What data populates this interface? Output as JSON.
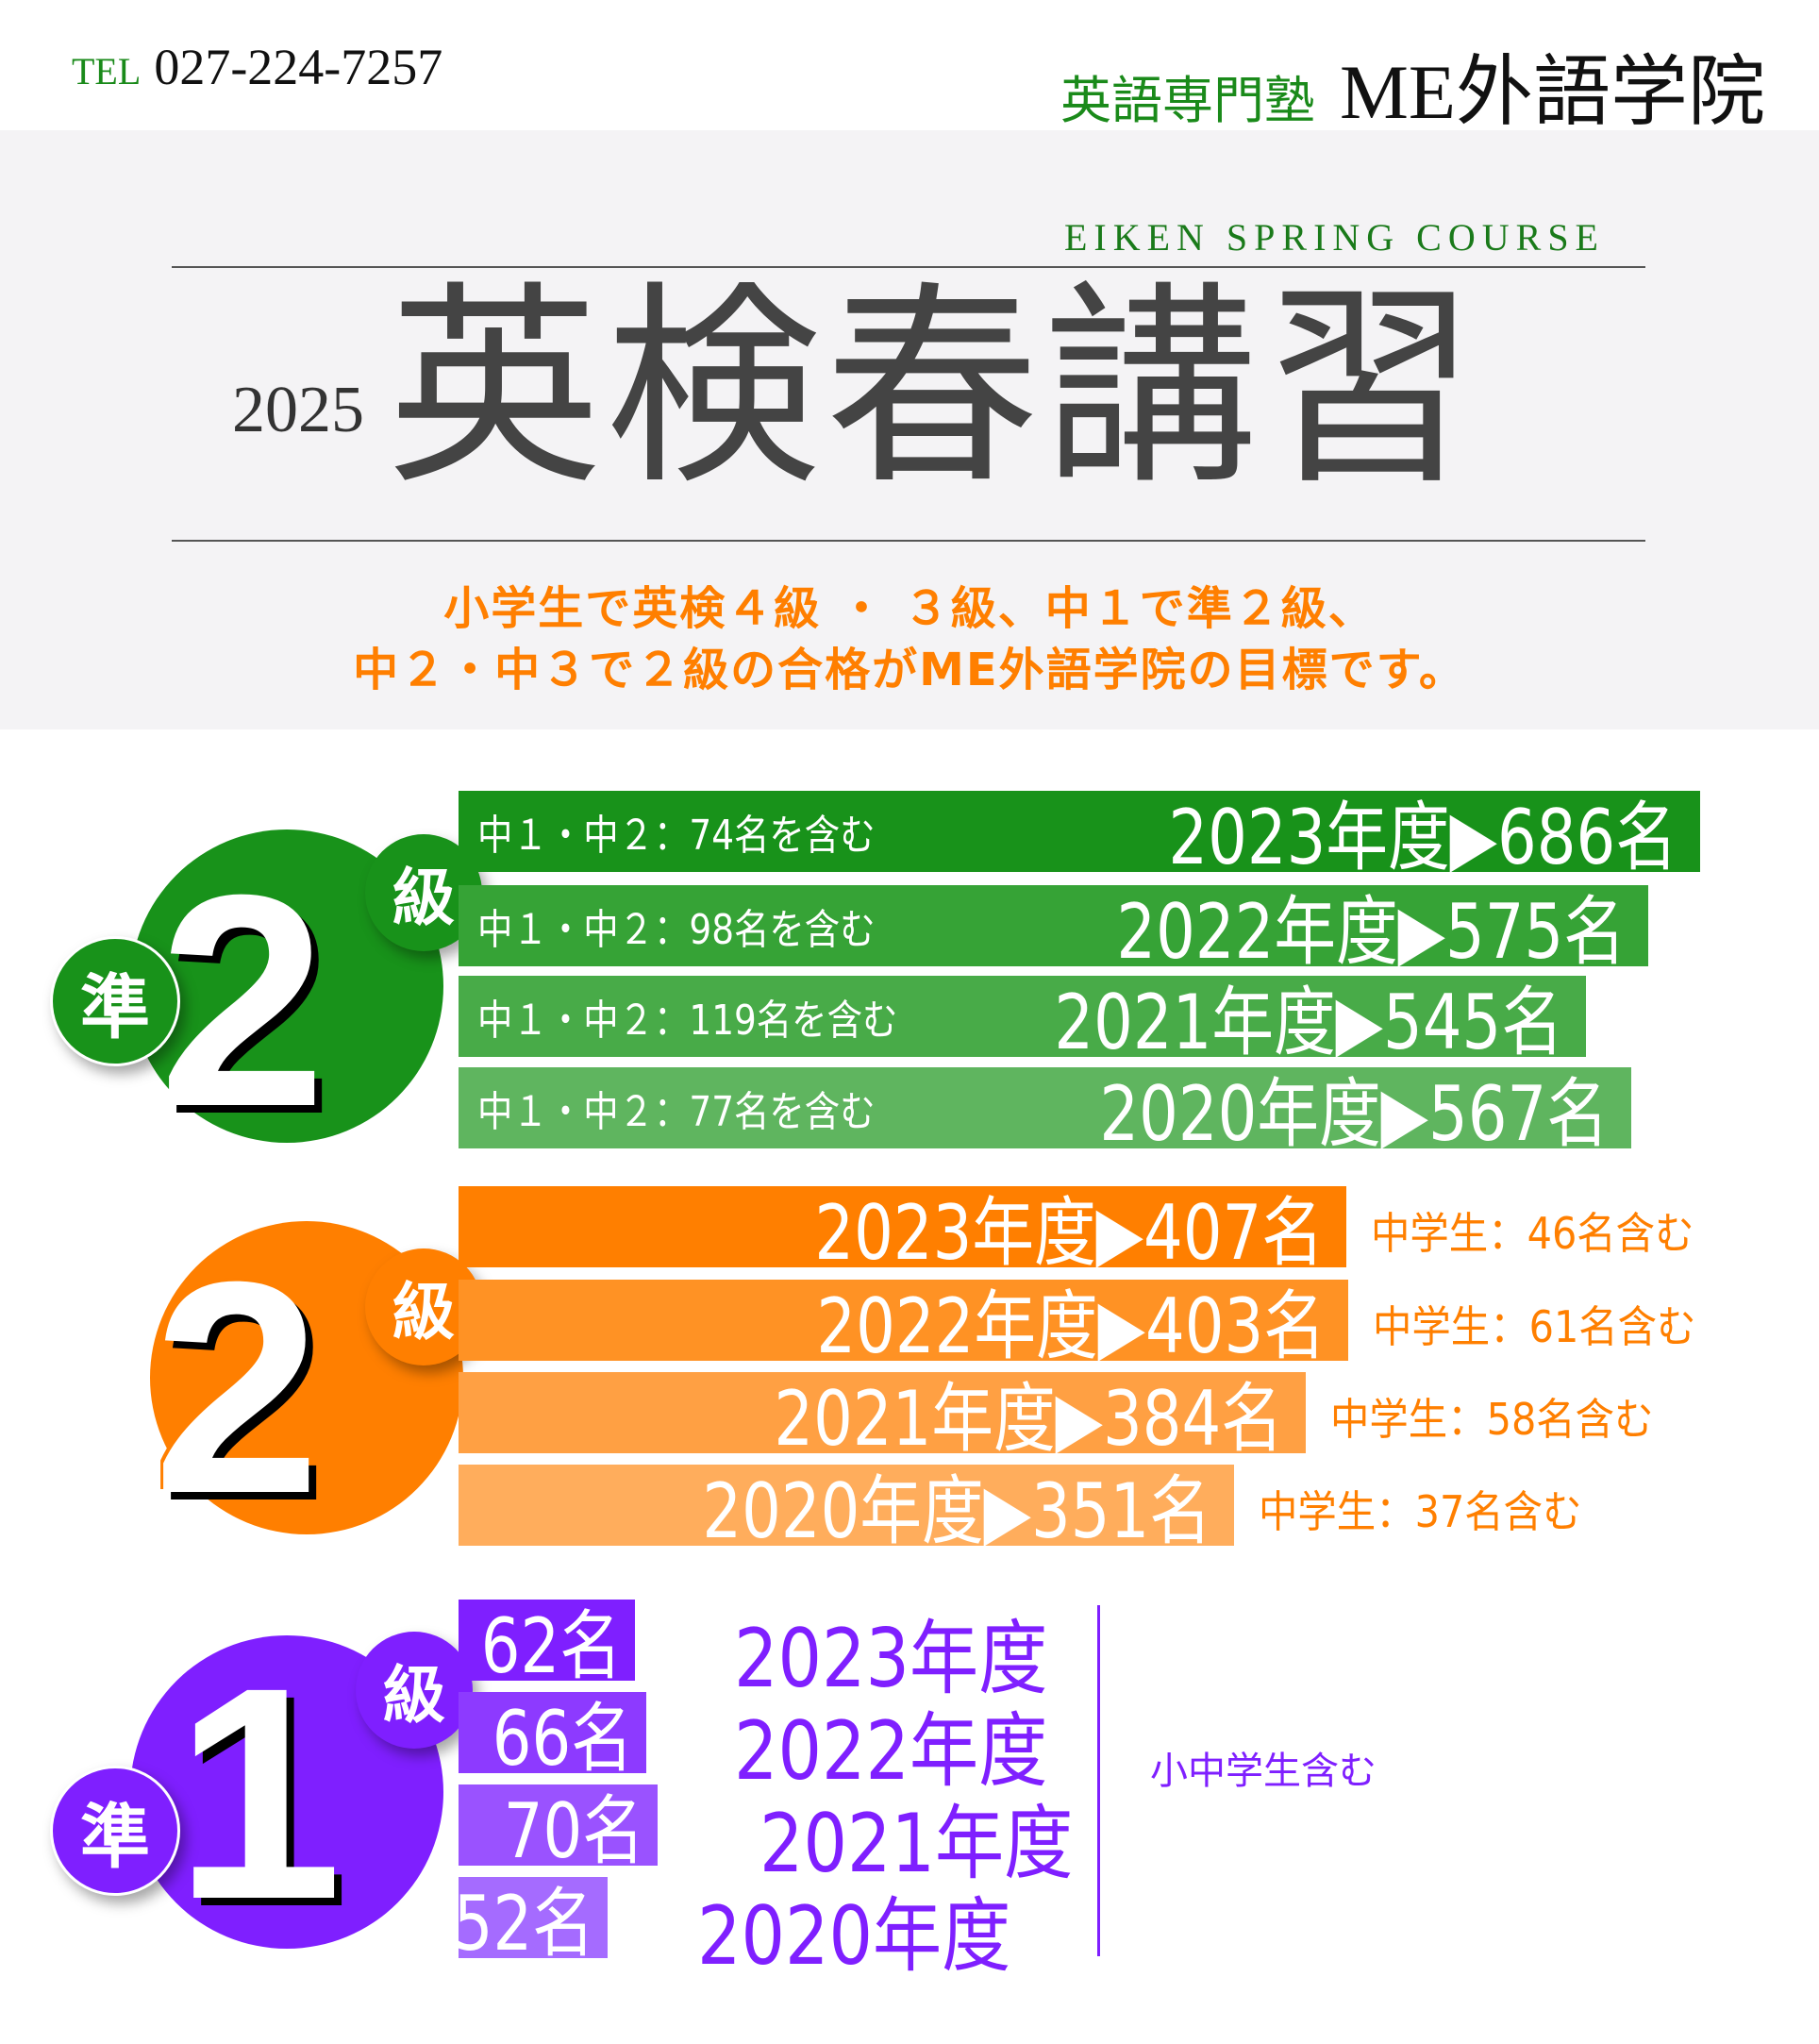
{
  "header": {
    "tel_label": "TEL",
    "tel_number": "027-224-7257",
    "logo_sub": "英語専門塾",
    "logo_main": "ME外語学院"
  },
  "hero": {
    "subtitle": "EIKEN SPRING COURSE",
    "year": "2025",
    "title": "英検春講習",
    "message_line1": "小学生で英検４級 ・ ３級、中１で準２級、",
    "message_line2": "中２・中３で２級の合格がME外語学院の目標です。"
  },
  "colors": {
    "green": "#18921a",
    "orange": "#ff7f00",
    "purple": "#7f1fff",
    "title_gray": "#444444"
  },
  "pre2": {
    "jun": "準",
    "digit": "2",
    "kyu": "級",
    "rows": [
      {
        "note": "中１・中２：74名を含む",
        "result": "2023年度▶686名",
        "color": "#18921a"
      },
      {
        "note": "中１・中２：98名を含む",
        "result": "2022年度▶575名",
        "color": "#36a336"
      },
      {
        "note": "中１・中２：119名を含む",
        "result": "2021年度▶545名",
        "color": "#48ab48"
      },
      {
        "note": "中１・中２：77名を含む",
        "result": "2020年度▶567名",
        "color": "#5fb55f"
      }
    ]
  },
  "grade2": {
    "digit": "2",
    "kyu": "級",
    "rows": [
      {
        "result": "2023年度▶407名",
        "note": "中学生：46名含む",
        "color": "#ff7f00"
      },
      {
        "result": "2022年度▶403名",
        "note": "中学生：61名含む",
        "color": "#ff9224"
      },
      {
        "result": "2021年度▶384名",
        "note": "中学生：58名含む",
        "color": "#ffa043"
      },
      {
        "result": "2020年度▶351名",
        "note": "中学生：37名含む",
        "color": "#ffad5c"
      }
    ]
  },
  "pre1": {
    "jun": "準",
    "digit": "1",
    "kyu": "級",
    "note": "小中学生含む",
    "rows": [
      {
        "count": "62名",
        "year": "2023年度",
        "color": "#7f1fff"
      },
      {
        "count": "66名",
        "year": "2022年度",
        "color": "#8d3aff"
      },
      {
        "count": "70名",
        "year": "2021年度",
        "color": "#9a52ff"
      },
      {
        "count": "52名",
        "year": "2020年度",
        "color": "#a56bff"
      }
    ]
  }
}
